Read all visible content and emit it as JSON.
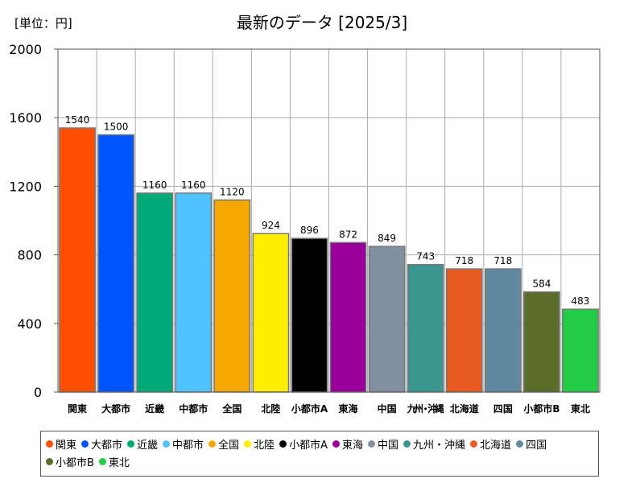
{
  "chart_data": {
    "type": "bar",
    "title": "最新のデータ [2025/3]",
    "unit_label": "[単位：円]",
    "xlabel": "",
    "ylabel": "",
    "ylim": [
      0,
      2000
    ],
    "yticks": [
      0,
      400,
      800,
      1200,
      1600,
      2000
    ],
    "grid": true,
    "legend_position": "bottom",
    "categories": [
      "関東",
      "大都市",
      "近畿",
      "中都市",
      "全国",
      "北陸",
      "小都市A",
      "東海",
      "中国",
      "九州・沖縄",
      "北海道",
      "四国",
      "小都市B",
      "東北"
    ],
    "values": [
      1540,
      1500,
      1160,
      1160,
      1120,
      924,
      896,
      872,
      849,
      743,
      718,
      718,
      584,
      483
    ],
    "colors": [
      "#ff4e00",
      "#0055ff",
      "#00aa77",
      "#4fc3ff",
      "#f5a800",
      "#ffee00",
      "#000000",
      "#990099",
      "#8090a0",
      "#3a9690",
      "#e85a20",
      "#6088a0",
      "#5a6e2a",
      "#22cc44"
    ]
  }
}
